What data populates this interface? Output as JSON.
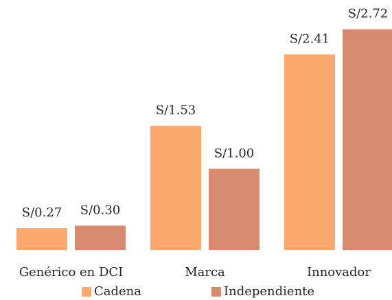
{
  "chart_data": {
    "type": "bar",
    "categories": [
      "Genérico en DCI",
      "Marca",
      "Innovador"
    ],
    "series": [
      {
        "name": "Cadena",
        "color": "#fba96e",
        "values": [
          0.27,
          1.53,
          2.41
        ],
        "value_labels": [
          "S/0.27",
          "S/1.53",
          "S/2.41"
        ]
      },
      {
        "name": "Independiente",
        "color": "#d98b6f",
        "values": [
          0.3,
          1.0,
          2.72
        ],
        "value_labels": [
          "S/0.30",
          "S/1.00",
          "S/2.72"
        ]
      }
    ],
    "ylim": [
      0,
      3
    ],
    "legend": "bottom"
  }
}
